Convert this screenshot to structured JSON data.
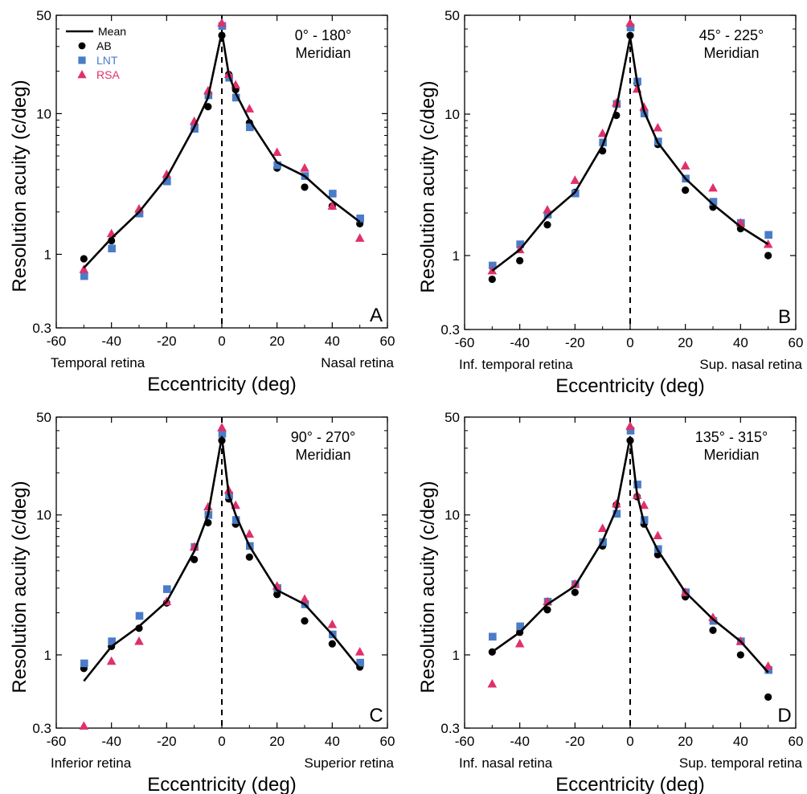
{
  "chart_data": [
    {
      "type": "scatter",
      "panel": "A",
      "annotation": [
        "0° - 180°",
        "Meridian"
      ],
      "xlabel": "Eccentricity (deg)",
      "ylabel": "Resolution acuity (c/deg)",
      "x_side_labels": {
        "left": "Temporal retina",
        "right": "Nasal retina"
      },
      "xlim": [
        -60,
        60
      ],
      "ylim": [
        0.3,
        50
      ],
      "yscale": "log",
      "xticks": [
        "-60",
        "-40",
        "-20",
        "0",
        "20",
        "40",
        "60"
      ],
      "yticks": [
        {
          "v": 0.3,
          "label": "0.3"
        },
        {
          "v": 1,
          "label": "1"
        },
        {
          "v": 10,
          "label": "10"
        },
        {
          "v": 50,
          "label": "50"
        }
      ],
      "legend": {
        "placement": "top-left",
        "entries": [
          "Mean",
          "AB",
          "LNT",
          "RSA"
        ]
      },
      "series": [
        {
          "name": "Mean",
          "marker": "line",
          "x": [
            -50,
            -40,
            -30,
            -20,
            -10,
            -5,
            0,
            2.5,
            5,
            10,
            20,
            30,
            40,
            50
          ],
          "y": [
            0.8,
            1.3,
            2.0,
            3.5,
            8.0,
            13.0,
            38.0,
            19.0,
            14.0,
            9.0,
            4.5,
            3.6,
            2.4,
            1.7
          ]
        },
        {
          "name": "AB",
          "marker": "circle",
          "x": [
            -50,
            -40,
            -30,
            -20,
            -10,
            -5,
            0,
            2.5,
            5,
            10,
            20,
            30,
            40,
            50
          ],
          "y": [
            0.93,
            1.25,
            2.0,
            3.4,
            7.8,
            11.2,
            36.0,
            19.0,
            14.8,
            8.6,
            4.1,
            3.0,
            2.2,
            1.65
          ]
        },
        {
          "name": "LNT",
          "marker": "square",
          "x": [
            -50,
            -40,
            -30,
            -20,
            -10,
            -5,
            0,
            2.5,
            5,
            10,
            20,
            30,
            40,
            50
          ],
          "y": [
            0.7,
            1.1,
            1.95,
            3.3,
            7.8,
            13.5,
            42.0,
            18.0,
            13.0,
            8.0,
            4.3,
            3.6,
            2.7,
            1.8
          ]
        },
        {
          "name": "RSA",
          "marker": "triangle",
          "x": [
            -50,
            -40,
            -30,
            -20,
            -10,
            -5,
            0,
            2.5,
            5,
            10,
            20,
            30,
            40,
            50
          ],
          "y": [
            0.78,
            1.4,
            2.1,
            3.7,
            8.8,
            14.5,
            44.0,
            19.0,
            16.0,
            10.8,
            5.3,
            4.1,
            2.2,
            1.3
          ]
        }
      ]
    },
    {
      "type": "scatter",
      "panel": "B",
      "annotation": [
        "45° - 225°",
        "Meridian"
      ],
      "xlabel": "Eccentricity (deg)",
      "ylabel": "Resolution acuity (c/deg)",
      "x_side_labels": {
        "left": "Inf. temporal retina",
        "right": "Sup. nasal retina"
      },
      "xlim": [
        -60,
        60
      ],
      "ylim": [
        0.3,
        50
      ],
      "yscale": "log",
      "xticks": [
        "-60",
        "-40",
        "-20",
        "0",
        "20",
        "40",
        "60"
      ],
      "yticks": [
        {
          "v": 0.3,
          "label": "0.3"
        },
        {
          "v": 1,
          "label": "1"
        },
        {
          "v": 10,
          "label": "10"
        },
        {
          "v": 50,
          "label": "50"
        }
      ],
      "series": [
        {
          "name": "Mean",
          "marker": "line",
          "x": [
            -50,
            -40,
            -30,
            -20,
            -10,
            -5,
            0,
            2.5,
            5,
            10,
            20,
            30,
            40,
            50
          ],
          "y": [
            0.78,
            1.1,
            1.9,
            2.8,
            6.0,
            11.0,
            35.0,
            17.0,
            10.5,
            6.3,
            3.5,
            2.3,
            1.6,
            1.2
          ]
        },
        {
          "name": "AB",
          "marker": "circle",
          "x": [
            -50,
            -40,
            -30,
            -20,
            -10,
            -5,
            0,
            2.5,
            5,
            10,
            20,
            30,
            40,
            50
          ],
          "y": [
            0.68,
            0.92,
            1.65,
            2.8,
            5.5,
            9.8,
            36.0,
            16.5,
            10.6,
            6.1,
            2.9,
            2.2,
            1.55,
            1.0
          ]
        },
        {
          "name": "LNT",
          "marker": "square",
          "x": [
            -50,
            -40,
            -30,
            -20,
            -10,
            -5,
            0,
            2.5,
            5,
            10,
            20,
            30,
            40,
            50
          ],
          "y": [
            0.85,
            1.2,
            1.95,
            2.75,
            6.3,
            11.8,
            41.0,
            17.0,
            10.1,
            6.4,
            3.5,
            2.4,
            1.7,
            1.4
          ]
        },
        {
          "name": "RSA",
          "marker": "triangle",
          "x": [
            -50,
            -40,
            -30,
            -20,
            -10,
            -5,
            0,
            2.5,
            5,
            10,
            20,
            30,
            40,
            50
          ],
          "y": [
            0.78,
            1.1,
            2.1,
            3.4,
            7.3,
            12.0,
            44.0,
            15.0,
            11.2,
            8.0,
            4.3,
            3.0,
            1.7,
            1.2
          ]
        }
      ]
    },
    {
      "type": "scatter",
      "panel": "C",
      "annotation": [
        "90° - 270°",
        "Meridian"
      ],
      "xlabel": "Eccentricity (deg)",
      "ylabel": "Resolution acuity (c/deg)",
      "x_side_labels": {
        "left": "Inferior retina",
        "right": "Superior retina"
      },
      "xlim": [
        -60,
        60
      ],
      "ylim": [
        0.3,
        50
      ],
      "yscale": "log",
      "xticks": [
        "-60",
        "-40",
        "-20",
        "0",
        "20",
        "40",
        "60"
      ],
      "yticks": [
        {
          "v": 0.3,
          "label": "0.3"
        },
        {
          "v": 1,
          "label": "1"
        },
        {
          "v": 10,
          "label": "10"
        },
        {
          "v": 50,
          "label": "50"
        }
      ],
      "series": [
        {
          "name": "Mean",
          "marker": "line",
          "x": [
            -50,
            -40,
            -30,
            -20,
            -10,
            -5,
            0,
            2.5,
            5,
            10,
            20,
            30,
            40,
            50
          ],
          "y": [
            0.65,
            1.15,
            1.6,
            2.4,
            5.5,
            10.0,
            36.0,
            14.0,
            10.0,
            6.0,
            2.9,
            2.3,
            1.4,
            0.8
          ]
        },
        {
          "name": "AB",
          "marker": "circle",
          "x": [
            -50,
            -40,
            -30,
            -20,
            -10,
            -5,
            0,
            2.5,
            5,
            10,
            20,
            30,
            40,
            50
          ],
          "y": [
            0.8,
            1.15,
            1.55,
            2.35,
            4.8,
            8.8,
            34.0,
            13.0,
            8.6,
            5.0,
            2.7,
            1.75,
            1.2,
            0.82
          ]
        },
        {
          "name": "LNT",
          "marker": "square",
          "x": [
            -50,
            -40,
            -30,
            -20,
            -10,
            -5,
            0,
            2.5,
            5,
            10,
            20,
            30,
            40,
            50
          ],
          "y": [
            0.87,
            1.25,
            1.9,
            2.95,
            5.9,
            10.0,
            38.0,
            13.8,
            9.2,
            6.0,
            3.0,
            2.3,
            1.4,
            0.88
          ]
        },
        {
          "name": "RSA",
          "marker": "triangle",
          "x": [
            -50,
            -40,
            -30,
            -20,
            -10,
            -5,
            0,
            2.5,
            5,
            10,
            20,
            30,
            40,
            50
          ],
          "y": [
            0.31,
            0.9,
            1.25,
            2.4,
            5.9,
            11.4,
            42.0,
            15.0,
            11.7,
            7.3,
            3.1,
            2.5,
            1.65,
            1.05
          ]
        }
      ]
    },
    {
      "type": "scatter",
      "panel": "D",
      "annotation": [
        "135° - 315°",
        "Meridian"
      ],
      "xlabel": "Eccentricity (deg)",
      "ylabel": "Resolution acuity (c/deg)",
      "x_side_labels": {
        "left": "Inf. nasal retina",
        "right": "Sup. temporal retina"
      },
      "xlim": [
        -60,
        60
      ],
      "ylim": [
        0.3,
        50
      ],
      "yscale": "log",
      "xticks": [
        "-60",
        "-40",
        "-20",
        "0",
        "20",
        "40",
        "60"
      ],
      "yticks": [
        {
          "v": 0.3,
          "label": "0.3"
        },
        {
          "v": 1,
          "label": "1"
        },
        {
          "v": 10,
          "label": "10"
        },
        {
          "v": 50,
          "label": "50"
        }
      ],
      "series": [
        {
          "name": "Mean",
          "marker": "line",
          "x": [
            -50,
            -40,
            -30,
            -20,
            -10,
            -5,
            0,
            2.5,
            5,
            10,
            20,
            30,
            40,
            50
          ],
          "y": [
            1.05,
            1.45,
            2.3,
            3.1,
            6.5,
            11.0,
            36.0,
            14.0,
            8.8,
            5.6,
            2.8,
            1.8,
            1.25,
            0.75
          ]
        },
        {
          "name": "AB",
          "marker": "circle",
          "x": [
            -50,
            -40,
            -30,
            -20,
            -10,
            -5,
            0,
            2.5,
            5,
            10,
            20,
            30,
            40,
            50
          ],
          "y": [
            1.05,
            1.45,
            2.1,
            2.8,
            6.0,
            11.8,
            34.0,
            13.5,
            8.6,
            5.2,
            2.6,
            1.5,
            1.0,
            0.5
          ]
        },
        {
          "name": "LNT",
          "marker": "square",
          "x": [
            -50,
            -40,
            -30,
            -20,
            -10,
            -5,
            0,
            2.5,
            5,
            10,
            20,
            30,
            40,
            50
          ],
          "y": [
            1.35,
            1.6,
            2.4,
            3.2,
            6.4,
            10.2,
            40.0,
            16.5,
            9.2,
            5.7,
            2.8,
            1.75,
            1.25,
            0.78
          ]
        },
        {
          "name": "RSA",
          "marker": "triangle",
          "x": [
            -50,
            -40,
            -30,
            -20,
            -10,
            -5,
            0,
            2.5,
            5,
            10,
            20,
            30,
            40,
            50
          ],
          "y": [
            0.62,
            1.2,
            2.4,
            3.2,
            8.0,
            12.0,
            43.0,
            13.8,
            11.7,
            7.1,
            2.8,
            1.85,
            1.25,
            0.83
          ]
        }
      ]
    }
  ],
  "colors": {
    "mean_line": "#000000",
    "AB": "#000000",
    "LNT": "#4a7cc7",
    "RSA": "#e0306a",
    "axis": "#000000"
  }
}
